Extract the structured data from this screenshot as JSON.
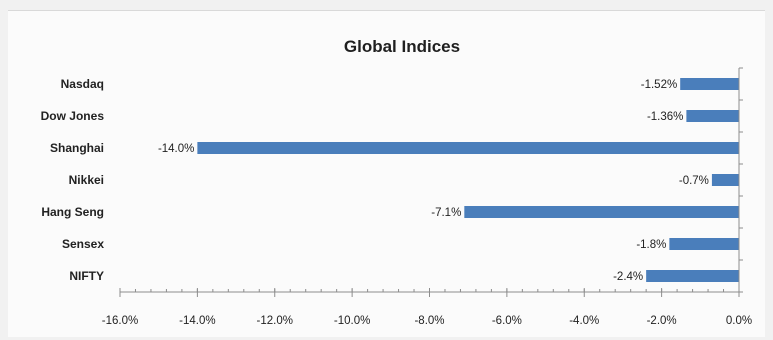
{
  "chart_data": {
    "type": "bar",
    "orientation": "horizontal",
    "title": "Global Indices",
    "categories": [
      "Nasdaq",
      "Dow Jones",
      "Shanghai",
      "Nikkei",
      "Hang Seng",
      "Sensex",
      "NIFTY"
    ],
    "values": [
      -1.52,
      -1.36,
      -14.0,
      -0.7,
      -7.1,
      -1.8,
      -2.4
    ],
    "data_labels": [
      "-1.52%",
      "-1.36%",
      "-14.0%",
      "-0.7%",
      "-7.1%",
      "-1.8%",
      "-2.4%"
    ],
    "xlim": [
      -16.0,
      0.0
    ],
    "x_ticks": [
      -16.0,
      -14.0,
      -12.0,
      -10.0,
      -8.0,
      -6.0,
      -4.0,
      -2.0,
      0.0
    ],
    "x_tick_labels": [
      "-16.0%",
      "-14.0%",
      "-12.0%",
      "-10.0%",
      "-8.0%",
      "-6.0%",
      "-4.0%",
      "-2.0%",
      "0.0%"
    ],
    "x_minor_step": 0.4,
    "xlabel": "",
    "ylabel": "",
    "grid": false,
    "legend": "none",
    "bar_color": "#4a7ebb"
  }
}
